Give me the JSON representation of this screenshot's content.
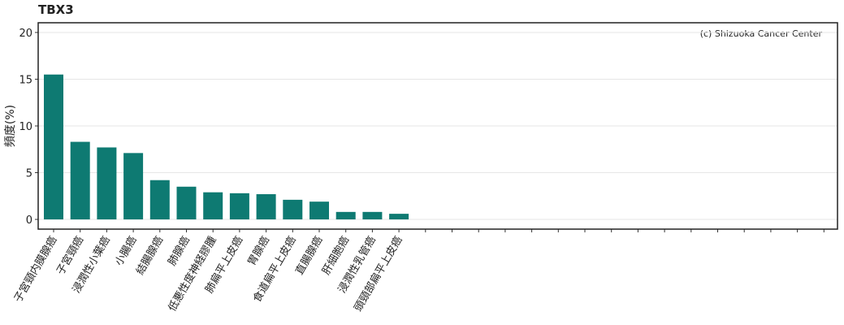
{
  "chart_data": {
    "type": "bar",
    "title": "TBX3",
    "y_label": "頻度(%)",
    "annotation": "(c) Shizuoka Cancer Center",
    "categories": [
      "子宮頸内膜腺癌",
      "子宮頸癌",
      "浸潤性小葉癌",
      "小腸癌",
      "結腸腺癌",
      "肺腺癌",
      "低悪性度神経膠腫",
      "肺扁平上皮癌",
      "胃腺癌",
      "食道扁平上皮癌",
      "直腸腺癌",
      "肝細胞癌",
      "浸潤性乳管癌",
      "頭頸部扁平上皮癌",
      null,
      null,
      null,
      null,
      null,
      null,
      null,
      null,
      null,
      null,
      null,
      null,
      null,
      null,
      null,
      null
    ],
    "values": [
      15.5,
      8.3,
      7.7,
      7.1,
      4.2,
      3.5,
      2.9,
      2.8,
      2.7,
      2.1,
      1.9,
      0.8,
      0.8,
      0.6,
      null,
      null,
      null,
      null,
      null,
      null,
      null,
      null,
      null,
      null,
      null,
      null,
      null,
      null,
      null,
      null
    ],
    "color": "#0e7a72",
    "ylim": [
      -1.04,
      21.04
    ],
    "yticks": [
      0,
      5,
      10,
      15,
      20
    ],
    "grid": true
  }
}
